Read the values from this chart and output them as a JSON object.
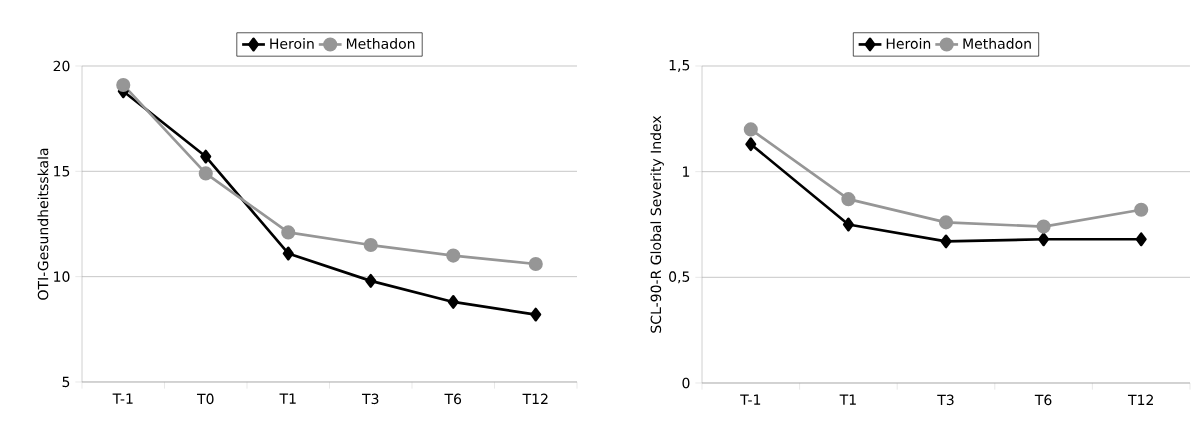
{
  "chart_data": [
    {
      "type": "line",
      "ylabel": "OTI-Gesundheitsskala",
      "categories": [
        "T-1",
        "T0",
        "T1",
        "T3",
        "T6",
        "T12"
      ],
      "series": [
        {
          "name": "Heroin",
          "color": "#000000",
          "marker": "diamond",
          "values": [
            18.8,
            15.7,
            11.1,
            9.8,
            8.8,
            8.2
          ]
        },
        {
          "name": "Methadon",
          "color": "#969696",
          "marker": "circle",
          "values": [
            19.1,
            14.9,
            12.1,
            11.5,
            11.0,
            10.6
          ]
        }
      ],
      "ylim": [
        5,
        20
      ],
      "yticks": [
        5,
        10,
        15,
        20
      ],
      "grid": "y",
      "legend": "top",
      "line_style": "solid"
    },
    {
      "type": "line",
      "ylabel": "SCL-90-R Global Severity Index",
      "categories": [
        "T-1",
        "T1",
        "T3",
        "T6",
        "T12"
      ],
      "series": [
        {
          "name": "Heroin",
          "color": "#000000",
          "marker": "diamond",
          "values": [
            1.13,
            0.75,
            0.67,
            0.68,
            0.68
          ]
        },
        {
          "name": "Methadon",
          "color": "#969696",
          "marker": "circle",
          "values": [
            1.2,
            0.87,
            0.76,
            0.74,
            0.82
          ]
        }
      ],
      "ylim": [
        0,
        1.5
      ],
      "yticks": [
        0,
        {
          "value": 0.5,
          "label": "0,5"
        },
        1,
        {
          "value": 1.5,
          "label": "1,5"
        }
      ],
      "grid": "y",
      "legend": "top",
      "line_style": "solid"
    }
  ]
}
